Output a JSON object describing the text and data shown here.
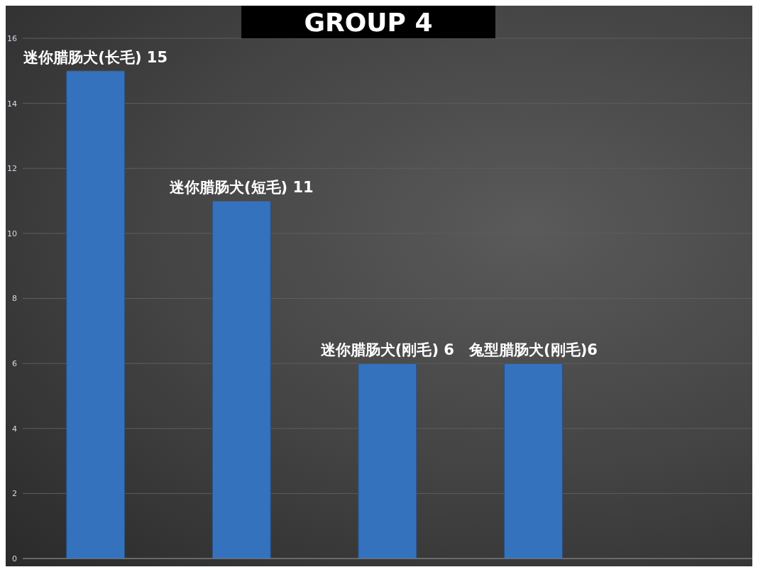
{
  "chart_data": {
    "type": "bar",
    "title": "GROUP 4",
    "categories": [
      null,
      null,
      null,
      null,
      null
    ],
    "values": [
      15,
      11,
      6,
      6,
      null
    ],
    "value_labels": [
      "迷你腊肠犬(长毛) 15",
      "迷你腊肠犬(短毛) 11",
      "迷你腊肠犬(刚毛) 6",
      "兔型腊肠犬(刚毛)6",
      null
    ],
    "color": "#3572bd",
    "ylim": [
      0,
      16
    ],
    "yticks": [
      0,
      2,
      4,
      6,
      8,
      10,
      12,
      14,
      16
    ],
    "grid": "y",
    "tick_labels": "y"
  }
}
